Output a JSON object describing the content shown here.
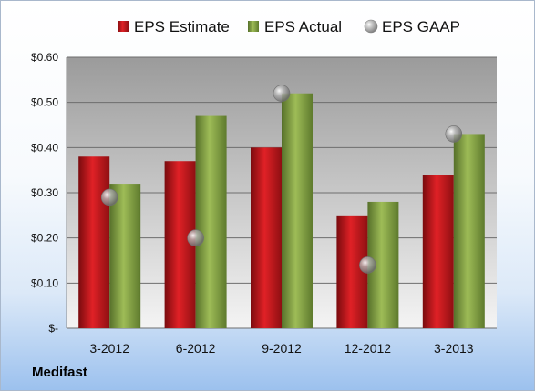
{
  "chart_data": {
    "type": "bar",
    "categories": [
      "3-2012",
      "6-2012",
      "9-2012",
      "12-2012",
      "3-2013"
    ],
    "series": [
      {
        "name": "EPS Estimate",
        "values": [
          0.38,
          0.37,
          0.4,
          0.25,
          0.34
        ],
        "color": "#c8171c",
        "kind": "bar"
      },
      {
        "name": "EPS Actual",
        "values": [
          0.32,
          0.47,
          0.52,
          0.28,
          0.43
        ],
        "color": "#7f9d3b",
        "kind": "bar"
      },
      {
        "name": "EPS GAAP",
        "values": [
          0.29,
          0.2,
          0.52,
          0.14,
          0.43
        ],
        "color": "#a0a0a0",
        "kind": "marker"
      }
    ],
    "yticks": [
      "$-",
      "$0.10",
      "$0.20",
      "$0.30",
      "$0.40",
      "$0.50",
      "$0.60"
    ],
    "ylim": [
      0,
      0.6
    ],
    "grid": true,
    "legend": "top"
  },
  "footer": {
    "company": "Medifast"
  }
}
